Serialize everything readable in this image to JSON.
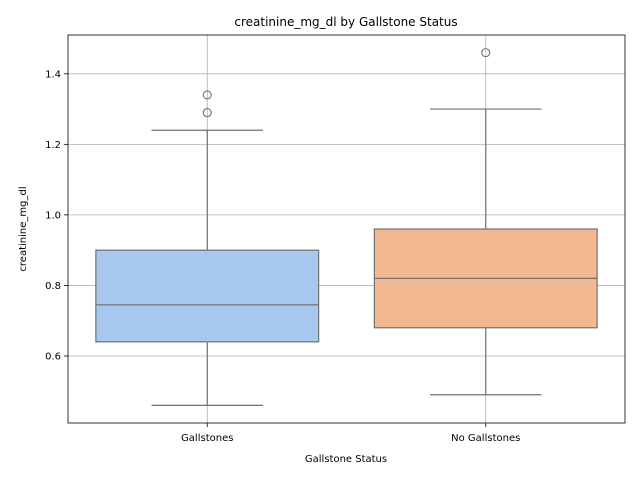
{
  "chart_data": {
    "type": "box",
    "title": "creatinine_mg_dl by Gallstone Status",
    "xlabel": "Gallstone Status",
    "ylabel": "creatinine_mg_dl",
    "ylim": [
      0.41,
      1.51
    ],
    "yticks": [
      "0.6",
      "0.8",
      "1.0",
      "1.2",
      "1.4"
    ],
    "grid": true,
    "categories": [
      "Gallstones",
      "No Gallstones"
    ],
    "boxes": [
      {
        "category": "Gallstones",
        "whisker_low": 0.46,
        "q1": 0.64,
        "median": 0.745,
        "q3": 0.9,
        "whisker_high": 1.24,
        "outliers": [
          1.29,
          1.34
        ],
        "color": "#a7c7ef"
      },
      {
        "category": "No Gallstones",
        "whisker_low": 0.49,
        "q1": 0.68,
        "median": 0.82,
        "q3": 0.96,
        "whisker_high": 1.3,
        "outliers": [
          1.46
        ],
        "color": "#f2b891"
      }
    ]
  }
}
